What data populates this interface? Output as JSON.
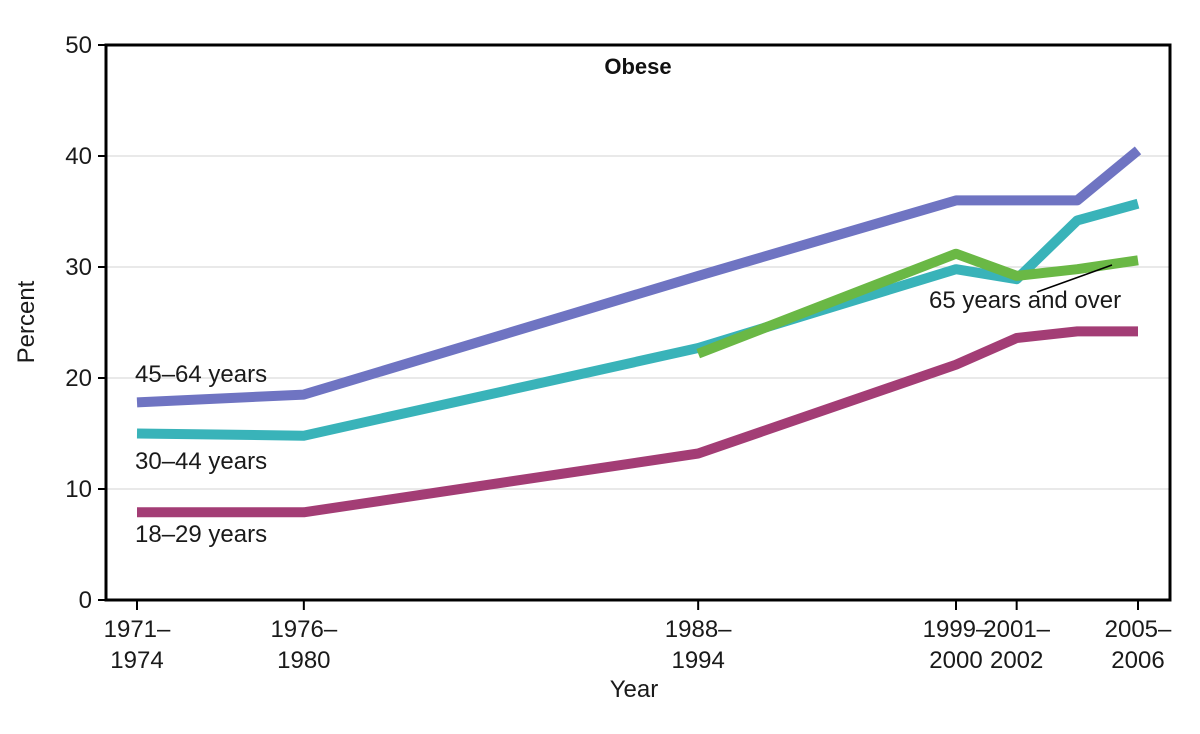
{
  "chart_data": {
    "type": "line",
    "title": "Obese",
    "xlabel": "Year",
    "ylabel": "Percent",
    "ylim": [
      0,
      50
    ],
    "yticks": [
      "0",
      "10",
      "20",
      "30",
      "40",
      "50"
    ],
    "grid": "horizontal",
    "x_ticks": [
      {
        "line1": "1971–",
        "line2": "1974",
        "year": 1972.5
      },
      {
        "line1": "1976–",
        "line2": "1980",
        "year": 1978
      },
      {
        "line1": "1988–",
        "line2": "1994",
        "year": 1991
      },
      {
        "line1": "1999–",
        "line2": "2000",
        "year": 1999.5
      },
      {
        "line1": "2001–",
        "line2": "2002",
        "year": 2001.5
      },
      {
        "line1": "2005–",
        "line2": "2006",
        "year": 2005.5
      }
    ],
    "series": [
      {
        "name": "45–64 years",
        "color": "#6f74c2",
        "points": [
          [
            1972.5,
            17.8
          ],
          [
            1978,
            18.5
          ],
          [
            1991,
            29.2
          ],
          [
            1999.5,
            36.0
          ],
          [
            2001.5,
            36.0
          ],
          [
            2003.5,
            36.0
          ],
          [
            2005.5,
            40.5
          ]
        ]
      },
      {
        "name": "30–44 years",
        "color": "#39b3b9",
        "points": [
          [
            1972.5,
            15.0
          ],
          [
            1978,
            14.8
          ],
          [
            1991,
            22.7
          ],
          [
            1999.5,
            29.8
          ],
          [
            2001.5,
            28.9
          ],
          [
            2003.5,
            34.2
          ],
          [
            2005.5,
            35.7
          ]
        ]
      },
      {
        "name": "65 years and over",
        "color": "#6ab845",
        "points": [
          [
            1991,
            22.2
          ],
          [
            1999.5,
            31.2
          ],
          [
            2001.5,
            29.2
          ],
          [
            2003.5,
            29.8
          ],
          [
            2005.5,
            30.6
          ]
        ]
      },
      {
        "name": "18–29 years",
        "color": "#a33d75",
        "points": [
          [
            1972.5,
            7.9
          ],
          [
            1978,
            7.9
          ],
          [
            1991,
            13.2
          ],
          [
            1999.5,
            21.2
          ],
          [
            2001.5,
            23.6
          ],
          [
            2003.5,
            24.2
          ],
          [
            2005.5,
            24.2
          ]
        ]
      }
    ]
  }
}
